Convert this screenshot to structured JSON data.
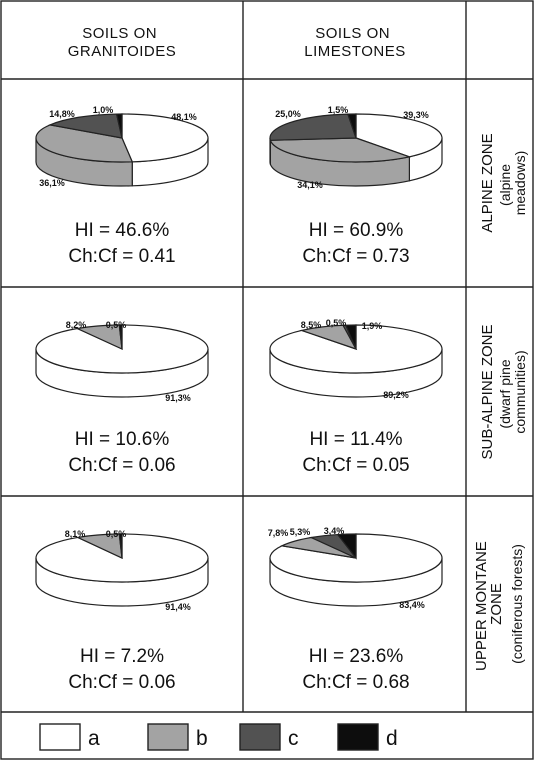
{
  "columns": [
    "SOILS  ON\nGRANITOIDES",
    "SOILS ON\nLIMESTONES"
  ],
  "rows": [
    {
      "zone": "ALPINE ZONE",
      "sub": "(alpine\nmeadows)"
    },
    {
      "zone": "SUB-ALPINE ZONE",
      "sub": "(dwarf pine\ncommunities)"
    },
    {
      "zone": "UPPER MONTANE\nZONE",
      "sub": "(coniferous forests)"
    }
  ],
  "legend": [
    {
      "label": "a",
      "color": "#ffffff"
    },
    {
      "label": "b",
      "color": "#a3a3a3"
    },
    {
      "label": "c",
      "color": "#525252"
    },
    {
      "label": "d",
      "color": "#0d0d0d"
    }
  ],
  "chart_data": [
    {
      "type": "pie",
      "column": "SOILS  ON GRANITOIDES",
      "row": "ALPINE ZONE",
      "categories": [
        "a",
        "b",
        "c",
        "d"
      ],
      "values": [
        48.1,
        36.1,
        14.8,
        1.0
      ],
      "labels": [
        "48,1%",
        "36,1%",
        "14,8%",
        "1,0%"
      ],
      "hi": "HI = 46.6%",
      "chcf": "Ch:Cf = 0.41"
    },
    {
      "type": "pie",
      "column": "SOILS ON LIMESTONES",
      "row": "ALPINE ZONE",
      "categories": [
        "a",
        "b",
        "c",
        "d"
      ],
      "values": [
        39.3,
        34.1,
        25.0,
        1.5
      ],
      "labels": [
        "39,3%",
        "34,1%",
        "25,0%",
        "1,5%"
      ],
      "hi": "HI = 60.9%",
      "chcf": "Ch:Cf = 0.73"
    },
    {
      "type": "pie",
      "column": "SOILS  ON GRANITOIDES",
      "row": "SUB-ALPINE ZONE",
      "categories": [
        "a",
        "b",
        "c",
        "d"
      ],
      "values": [
        91.3,
        8.2,
        0,
        0.5
      ],
      "labels": [
        "91,3%",
        "8,2%",
        "",
        "0,5%"
      ],
      "hi": "HI = 10.6%",
      "chcf": "Ch:Cf = 0.06"
    },
    {
      "type": "pie",
      "column": "SOILS ON LIMESTONES",
      "row": "SUB-ALPINE ZONE",
      "categories": [
        "a",
        "b",
        "c",
        "d"
      ],
      "values": [
        89.2,
        8.5,
        0.5,
        1.9
      ],
      "labels": [
        "89,2%",
        "8,5%",
        "0,5%",
        "1,9%"
      ],
      "hi": "HI = 11.4%",
      "chcf": "Ch:Cf = 0.05"
    },
    {
      "type": "pie",
      "column": "SOILS  ON GRANITOIDES",
      "row": "UPPER MONTANE ZONE",
      "categories": [
        "a",
        "b",
        "c",
        "d"
      ],
      "values": [
        91.4,
        8.1,
        0,
        0.5
      ],
      "labels": [
        "91,4%",
        "8,1%",
        "",
        "0,5%"
      ],
      "hi": "HI = 7.2%",
      "chcf": "Ch:Cf = 0.06"
    },
    {
      "type": "pie",
      "column": "SOILS ON LIMESTONES",
      "row": "UPPER MONTANE ZONE",
      "categories": [
        "a",
        "b",
        "c",
        "d"
      ],
      "values": [
        83.4,
        7.8,
        5.3,
        3.4
      ],
      "labels": [
        "83,4%",
        "7,8%",
        "5,3%",
        "3,4%"
      ],
      "hi": "HI = 23.6%",
      "chcf": "Ch:Cf = 0.68"
    }
  ]
}
